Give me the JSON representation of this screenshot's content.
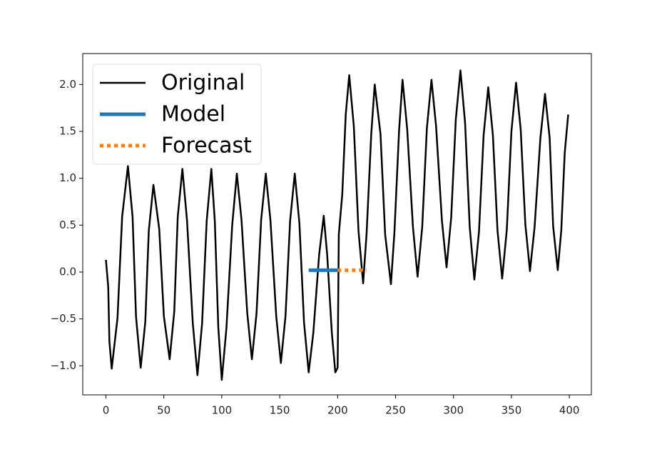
{
  "chart_data": {
    "type": "line",
    "series": [
      {
        "name": "Original",
        "color": "#000000",
        "dash": "solid",
        "x": [
          0,
          2,
          3,
          5,
          10,
          14,
          19,
          23,
          26,
          30,
          34,
          37,
          41,
          46,
          50,
          55,
          59,
          62,
          66,
          70,
          75,
          79,
          83,
          87,
          91,
          94,
          97,
          100,
          104,
          109,
          113,
          117,
          122,
          126,
          130,
          134,
          138,
          142,
          147,
          151,
          155,
          159,
          163,
          167,
          171,
          175,
          179,
          184,
          188,
          191,
          195,
          198,
          200,
          201,
          204,
          207,
          210,
          214,
          218,
          222,
          225,
          229,
          232,
          237,
          241,
          246,
          249,
          253,
          256,
          260,
          265,
          269,
          273,
          277,
          281,
          285,
          290,
          294,
          298,
          302,
          306,
          310,
          314,
          318,
          322,
          326,
          330,
          334,
          338,
          342,
          346,
          350,
          354,
          358,
          362,
          366,
          370,
          375,
          379,
          383,
          386,
          390,
          393,
          396,
          399
        ],
        "values": [
          0.13,
          -0.16,
          -0.74,
          -1.03,
          -0.49,
          0.59,
          1.13,
          0.59,
          -0.48,
          -1.02,
          -0.53,
          0.44,
          0.93,
          0.46,
          -0.47,
          -0.93,
          -0.42,
          0.59,
          1.1,
          0.55,
          -0.55,
          -1.1,
          -0.55,
          0.55,
          1.1,
          0.54,
          -0.59,
          -1.15,
          -0.6,
          0.5,
          1.05,
          0.56,
          -0.44,
          -0.93,
          -0.44,
          0.56,
          1.05,
          0.55,
          -0.47,
          -0.97,
          -0.47,
          0.55,
          1.05,
          0.52,
          -0.54,
          -1.07,
          -0.65,
          0.18,
          0.6,
          0.18,
          -0.65,
          -1.07,
          -1.02,
          0.4,
          0.83,
          1.68,
          2.1,
          1.55,
          0.44,
          -0.12,
          0.41,
          1.47,
          2.0,
          1.47,
          0.4,
          -0.13,
          0.42,
          1.5,
          2.05,
          1.53,
          0.48,
          -0.05,
          0.48,
          1.53,
          2.05,
          1.55,
          0.55,
          0.05,
          0.58,
          1.63,
          2.15,
          1.59,
          0.48,
          -0.08,
          0.43,
          1.46,
          1.97,
          1.46,
          0.44,
          -0.07,
          0.45,
          1.5,
          2.02,
          1.52,
          0.51,
          0.01,
          0.48,
          1.43,
          1.9,
          1.43,
          0.49,
          0.02,
          0.44,
          1.27,
          1.68
        ]
      },
      {
        "name": "Model",
        "color": "#1f77b4",
        "dash": "solid",
        "x": [
          175,
          200
        ],
        "values": [
          0.02,
          0.02
        ]
      },
      {
        "name": "Forecast",
        "color": "#ff7f0e",
        "dash": "dotted",
        "x": [
          200,
          225
        ],
        "values": [
          0.02,
          0.02
        ]
      }
    ],
    "xlim": [
      -20,
      419
    ],
    "ylim": [
      -1.31,
      2.33
    ],
    "xticks": [
      0,
      50,
      100,
      150,
      200,
      250,
      300,
      350,
      400
    ],
    "yticks": [
      {
        "value": -1.0,
        "label": "−1.0"
      },
      {
        "value": -0.5,
        "label": "−0.5"
      },
      {
        "value": 0.0,
        "label": "0.0"
      },
      {
        "value": 0.5,
        "label": "0.5"
      },
      {
        "value": 1.0,
        "label": "1.0"
      },
      {
        "value": 1.5,
        "label": "1.5"
      },
      {
        "value": 2.0,
        "label": "2.0"
      }
    ],
    "legend": "upper left",
    "grid": false
  }
}
